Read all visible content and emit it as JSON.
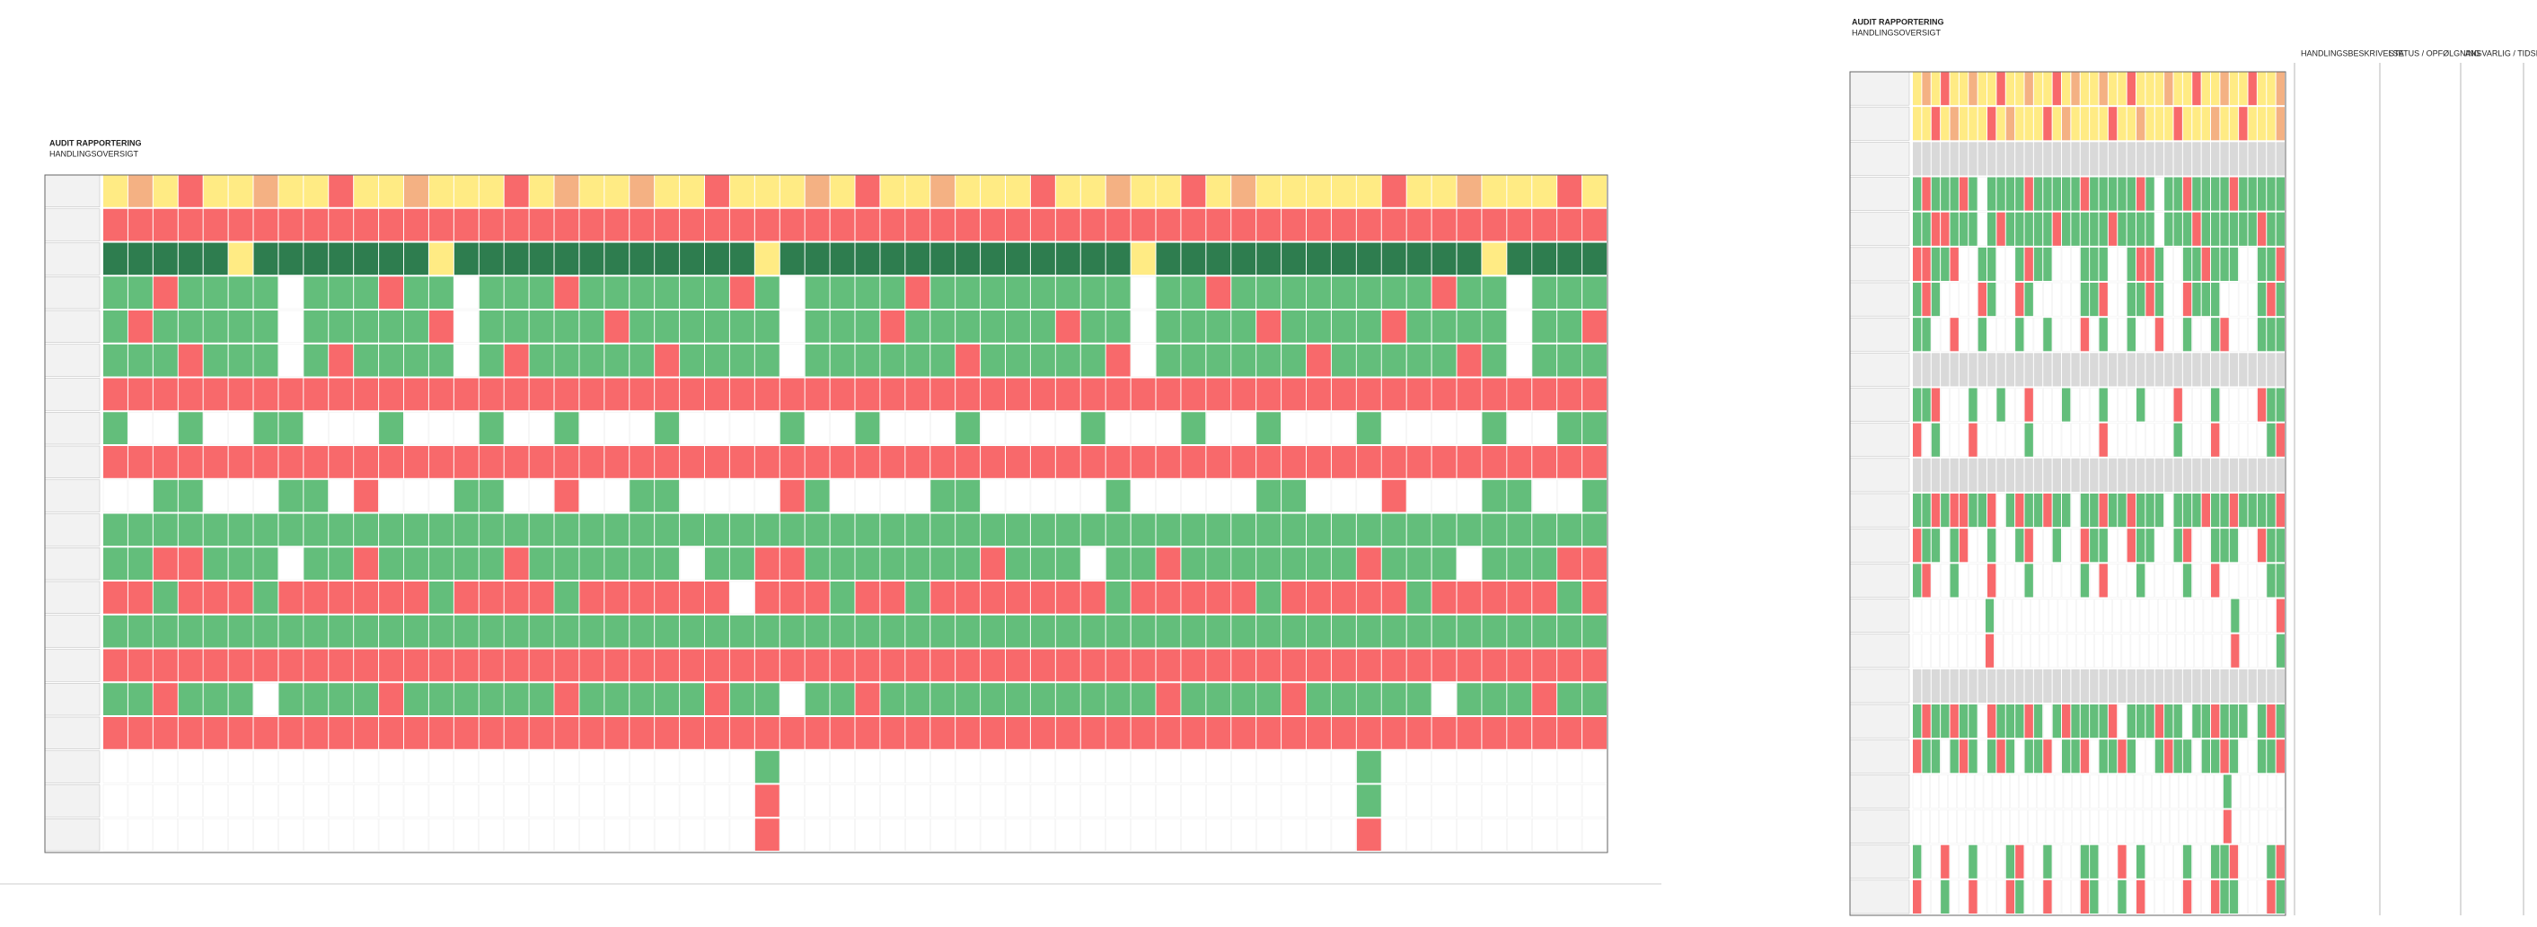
{
  "left_panel": {
    "title": "AUDIT RAPPORTERING",
    "subtitle": "HANDLINGSOVERSIGT",
    "rows": [
      "YOYRYYOYYRYYOYYYRYOYYOYYRYYYOYRYYOYYYRYYOYYRYOYYYYYRYYOYYYRY",
      "RRRRRRRRRRRRRRRRRRRRRRRRRRRRRRRRRRRRRRRRRRRRRRRRRRRRRRRRRRRR",
      "DDDDDYDDDDDDDYDDDDDDDDDDDDYDDDDDDDDDDDDDDYDDDDDDDDDDDDDYDDDD",
      "GGRGGGGWGGGRGGWGGGRGGGGGGRGWGGGGRGGGGGGGGWGGRGGGGGGGGRGGWGGG",
      "GRGGGGGWGGGGGRWGGGGGRGGGGGGWGGGRGGGGGGRGGWGGGGRGGGGRGGGGWGGR",
      "GGGRGGGWGRGGGGWGRGGGGGRGGGGWGGGGGGRGGGGGRWGGGGGGRGGGGGRGWGGG",
      "RRRRRRRRRRRRRRRRRRRRRRRRRRRRRRRRRRRRRRRRRRRRRRRRRRRRRRRRRRRR",
      "GWWGWWGGWWWGWWWGWWGWWWGWWWWGWWGWWWGWWWWGWWWGWWGWWWGWWWWGWWGG",
      "RRRRRRRRRRRRRRRRRRRRRRRRRRRRRRRRRRRRRRRRRRRRRRRRRRRRRRRRRRRR",
      "WWGGWWWGGWRWWWGGWWRWWGGWWWWRGWWWWGGWWWWWGWWWWWGGWWWRWWWGGWWG",
      "GGGGGGGGGGGGGGGGGGGGGGGGGGGGGGGGGGGGGGGGGGGGGGGGGGGGGGGGGGGG",
      "GGRRGGGWGGRGGGGGRGGGGGGWGGRRGGGGGGGRGGGWGGRGGGGGGGRGGGWGGGRR",
      "RRGRRRGRRRRRRGRRRRGRRRRRRWRRRGRRGRRRRRRRGRRRRRGRRRRRGRRRRRGR",
      "GGGGGGGGGGGGGGGGGGGGGGGGGGGGGGGGGGGGGGGGGGGGGGGGGGGGGGGGGGGG",
      "RRRRRRRRRRRRRRRRRRRRRRRRRRRRRRRRRRRRRRRRRRRRRRRRRRRRRRRRRRRR",
      "GGRGGGWGGGGRGGGGGGRGGGGGRGGWGGRGGGGGGGGGGGRGGGGRGGGGGWGGGRGG",
      "RRRRRRRRRRRRRRRRRRRRRRRRRRRRRRRRRRRRRRRRRRRRRRRRRRRRRRRRRRRR",
      "WWWWWWWWWWWWWWWWWWWWWWWWWWGWWWWWWWWWWWWWWWWWWWWWWWGWWWWWWWWW",
      "WWWWWWWWWWWWWWWWWWWWWWWWWWRWWWWWWWWWWWWWWWWWWWWWWWGWWWWWWWWW",
      "WWWWWWWWWWWWWWWWWWWWWWWWWWRWWWWWWWWWWWWWWWWWWWWWWWRWWWWWWWWW"
    ]
  },
  "right_panel": {
    "title": "AUDIT RAPPORTERING",
    "subtitle": "HANDLINGSOVERSIGT",
    "columns": [
      "HANDLINGSBESKRIVELSE",
      "STATUS / OPFØLGNING",
      "ANSVARLIG / TIDSFRIST"
    ],
    "rows": [
      "YOYRYYOYYRYYOYYRYOYYOYYRYYYOYYRYYOYYRYYO",
      "YYRYOYYYRYOYYYRYOYYYYRYYOYYYRYYYOYYRYYYO",
      "HHHHHHHHHHHHHHHHHHHHHHHHHHHHHHHHHHHHHHHH",
      "GRGGGRGWGGGGRGGGGGRGGGGGRGWGGRGGGGRGGGGG",
      "GGRRGGGWGRGGGGGRGGGGGRGGGGWGGGRGGGGGGRGG",
      "RRGGRWWGGWWGRGGWWWGGGWWGRRGWWGGRGGGWWGGR",
      "GRGWWWWRGWWRGWWWWWGGRWWGGRGWWRGGGWWWWGRG",
      "GGWWRWWGWWWGWWGWWWRWGWWGWWRWWGWWGRWWWGGG",
      "HHHHHHHHHHHHHHHHHHHHHHHHHHHHHHHHHHHHHHHH",
      "GGRWWWGWWGWWRWWWGWWWGWWWGWWWRWWWGWWWWRGG",
      "RWGWWWRWWWWWGWWWWWWWRWWWWWWWGWWWRWWWWWGR",
      "HHHHHHHHHHHHHHHHHHHHHHHHHHHHHHHHHHHHHHHH",
      "GGRGRRGGRWGRGGRGGWGGRGGRGGGWGGGRGGRGGGGR",
      "RGGWGRWWGWWGRWWGWWRGGWWRGGWWGRWWGGGWWRGG",
      "GRWWGWWWRWWWGWWWWWGWRWWWGWWWWGWWRWWWWWGG",
      "WWWWWWWWGWWWWWWWWWWWWWWWWWWWWWWWWWWGWWWWR",
      "WWWWWWWWRWWWWWWWWWWWWWWWWWWWWWWWWWWRWWWWG",
      "HHHHHHHHHHHHHHHHHHHHHHHHHHHHHHHHHHHHHHHH",
      "GRGGRGGWRGGGRGWGRGGGGRWGGGRGGWGGRGGGWGRG",
      "RGGWGRGWGRGWGGRWGGRWGGRGWWGRGGWGGRGWWGGR",
      "WWWWWWWWWWWWWWWWWWWWWWWWWWWWWWWWWWWGWWWWWW",
      "WWWWWWWWWWWWWWWWWWWWWWWWWWWWWWWWWWWRWWWWWW",
      "GWWRWWGWWWGRWWGWWWGGWWRWGWWWWGWWGGRWWWGR",
      "RWWGWWRWWWRGWWRWWWRGWWGWRWWWWRWWRGGWWWRG"
    ]
  },
  "colors": {
    "G": "#63be7b",
    "R": "#f8696b",
    "Y": "#ffeb84",
    "O": "#f4b183",
    "D": "#2e7d4f",
    "H": "#d9d9d9",
    "W": "#ffffff"
  }
}
